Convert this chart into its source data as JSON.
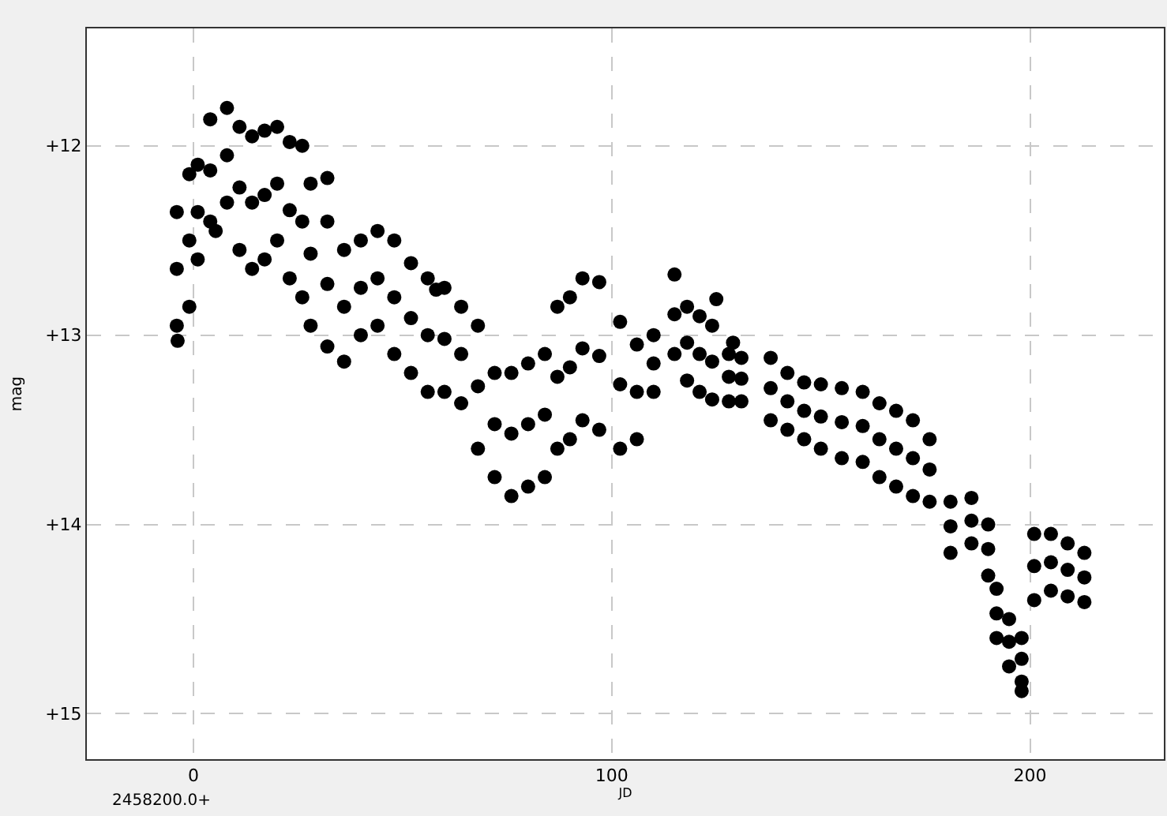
{
  "chart_data": {
    "type": "scatter",
    "xlabel": "JD",
    "ylabel": "mag",
    "annotations": [
      "2458200.0+"
    ],
    "xlim": [
      -25.5,
      232
    ],
    "ylim": [
      15.24,
      11.38
    ],
    "xticks": [
      0,
      100,
      200
    ],
    "yticks": [
      {
        "value": 12,
        "label": "+12"
      },
      {
        "value": 13,
        "label": "+13"
      },
      {
        "value": 14,
        "label": "+14"
      },
      {
        "value": 15,
        "label": "+15"
      }
    ],
    "grid": true,
    "marker": "circle",
    "series": [
      {
        "color": "#000000",
        "x": [
          -4,
          -4,
          -4,
          -1,
          -1,
          -1,
          1,
          1,
          1,
          4,
          4,
          4,
          8,
          8,
          8,
          11,
          11,
          11,
          14,
          14,
          14,
          17,
          17,
          17,
          20,
          20,
          20,
          23,
          23,
          23,
          26,
          26,
          26,
          28,
          28,
          28,
          32,
          32,
          32,
          36,
          36,
          36,
          40,
          40,
          40,
          44,
          44,
          44,
          48,
          48,
          48,
          52,
          52,
          52,
          56,
          56,
          56,
          60,
          60,
          60,
          64,
          64,
          64,
          68,
          68,
          68,
          72,
          72,
          72,
          76,
          76,
          76,
          80,
          80,
          80,
          84,
          84,
          84,
          87,
          87,
          87,
          90,
          90,
          90,
          93,
          93,
          93,
          97,
          97,
          97,
          102,
          102,
          102,
          106,
          106,
          106,
          110,
          110,
          110,
          115,
          115,
          115,
          118,
          118,
          118,
          121,
          121,
          121,
          124,
          124,
          124,
          128,
          128,
          128,
          131,
          131,
          131,
          138,
          138,
          138,
          142,
          142,
          142,
          146,
          146,
          146,
          150,
          150,
          150,
          155,
          155,
          155,
          160,
          160,
          160,
          164,
          164,
          164,
          168,
          168,
          168,
          172,
          172,
          172,
          176,
          176,
          176,
          181,
          181,
          181,
          186,
          186,
          186,
          190,
          190,
          190,
          192,
          192,
          192,
          195,
          195,
          195,
          198,
          198,
          198,
          201,
          201,
          201,
          205,
          205,
          205,
          209,
          209,
          209,
          213,
          213,
          213,
          -3.8,
          5.3,
          32,
          58,
          125,
          129,
          198
        ],
        "values": [
          12.35,
          12.65,
          12.95,
          12.15,
          12.5,
          12.85,
          12.1,
          12.35,
          12.6,
          11.86,
          12.13,
          12.4,
          11.8,
          12.05,
          12.3,
          11.9,
          12.22,
          12.55,
          11.95,
          12.3,
          12.65,
          11.92,
          12.26,
          12.6,
          11.9,
          12.2,
          12.5,
          11.98,
          12.34,
          12.7,
          12.0,
          12.4,
          12.8,
          12.2,
          12.57,
          12.95,
          12.4,
          12.73,
          13.06,
          12.55,
          12.85,
          13.14,
          12.5,
          12.75,
          13.0,
          12.45,
          12.7,
          12.95,
          12.5,
          12.8,
          13.1,
          12.62,
          12.91,
          13.2,
          12.7,
          13.0,
          13.3,
          12.75,
          13.02,
          13.3,
          12.85,
          13.1,
          13.36,
          12.95,
          13.27,
          13.6,
          13.2,
          13.47,
          13.75,
          13.2,
          13.52,
          13.85,
          13.15,
          13.47,
          13.8,
          13.1,
          13.42,
          13.75,
          12.85,
          13.22,
          13.6,
          12.8,
          13.17,
          13.55,
          12.7,
          13.07,
          13.45,
          12.72,
          13.11,
          13.5,
          12.93,
          13.26,
          13.6,
          13.05,
          13.3,
          13.55,
          13.0,
          13.15,
          13.3,
          12.68,
          12.89,
          13.1,
          12.85,
          13.04,
          13.24,
          12.9,
          13.1,
          13.3,
          12.95,
          13.14,
          13.34,
          13.1,
          13.22,
          13.35,
          13.12,
          13.23,
          13.35,
          13.12,
          13.28,
          13.45,
          13.2,
          13.35,
          13.5,
          13.25,
          13.4,
          13.55,
          13.26,
          13.43,
          13.6,
          13.28,
          13.46,
          13.65,
          13.3,
          13.48,
          13.67,
          13.36,
          13.55,
          13.75,
          13.4,
          13.6,
          13.8,
          13.45,
          13.65,
          13.85,
          13.55,
          13.71,
          13.88,
          13.88,
          14.01,
          14.15,
          13.86,
          13.98,
          14.1,
          14.0,
          14.13,
          14.27,
          14.34,
          14.47,
          14.6,
          14.5,
          14.62,
          14.75,
          14.6,
          14.71,
          14.83,
          14.05,
          14.22,
          14.4,
          14.05,
          14.2,
          14.35,
          14.1,
          14.24,
          14.38,
          14.15,
          14.28,
          14.41,
          13.03,
          12.45,
          12.17,
          12.76,
          12.81,
          13.04,
          14.88
        ]
      }
    ]
  }
}
